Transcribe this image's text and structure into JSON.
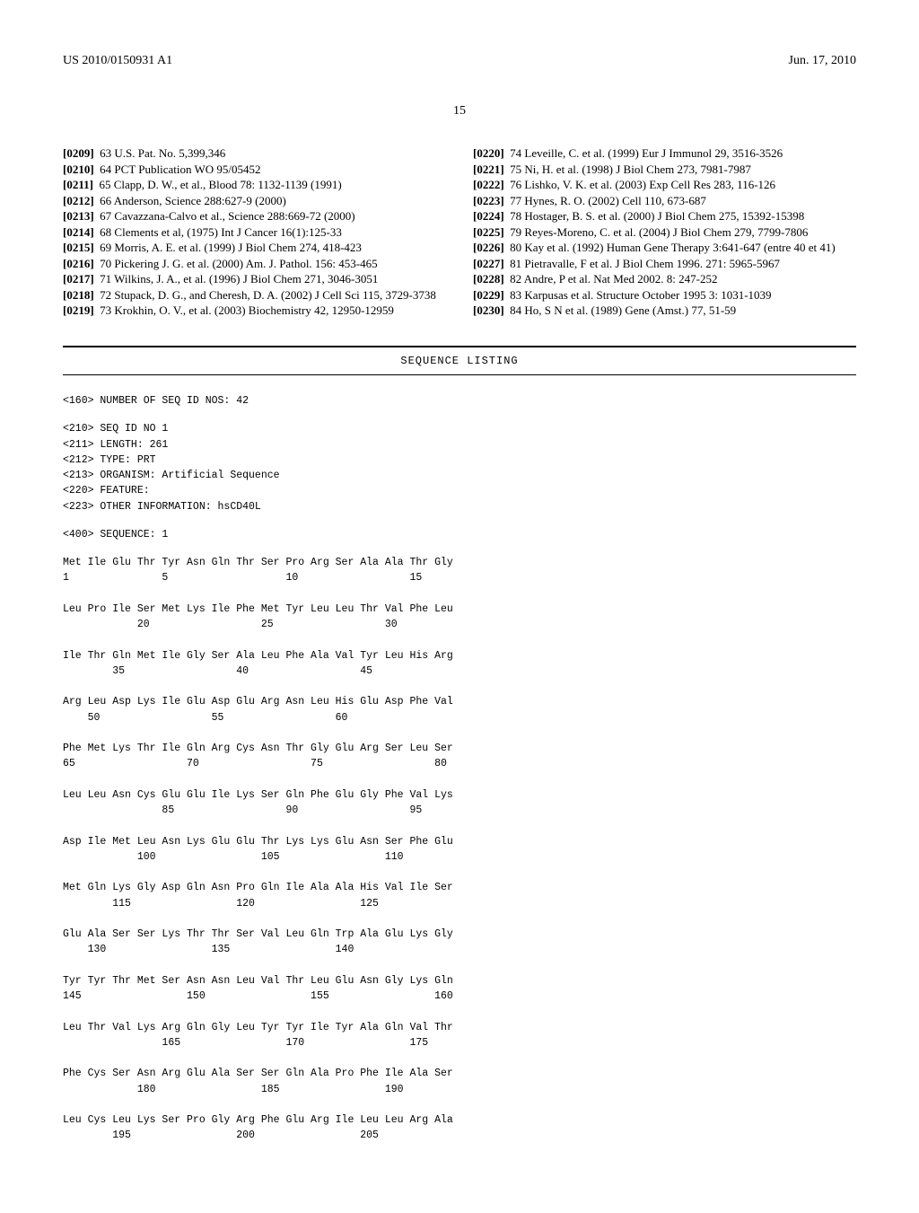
{
  "header": {
    "pub_num": "US 2010/0150931 A1",
    "date": "Jun. 17, 2010"
  },
  "page_number": "15",
  "left_refs": [
    {
      "num": "[0209]",
      "text": "63 U.S. Pat. No. 5,399,346"
    },
    {
      "num": "[0210]",
      "text": "64 PCT Publication WO 95/05452"
    },
    {
      "num": "[0211]",
      "text": "65 Clapp, D. W., et al., Blood 78: 1132-1139 (1991)"
    },
    {
      "num": "[0212]",
      "text": "66 Anderson, Science 288:627-9 (2000)"
    },
    {
      "num": "[0213]",
      "text": "67 Cavazzana-Calvo et al., Science 288:669-72 (2000)"
    },
    {
      "num": "[0214]",
      "text": "68 Clements et al, (1975) Int J Cancer 16(1):125-33"
    },
    {
      "num": "[0215]",
      "text": "69 Morris, A. E. et al. (1999) J Biol Chem 274, 418-423"
    },
    {
      "num": "[0216]",
      "text": "70 Pickering J. G. et al. (2000) Am. J. Pathol. 156: 453-465"
    },
    {
      "num": "[0217]",
      "text": "71 Wilkins, J. A., et al. (1996) J Biol Chem 271, 3046-3051"
    },
    {
      "num": "[0218]",
      "text": "72 Stupack, D. G., and Cheresh, D. A. (2002) J Cell Sci 115, 3729-3738"
    },
    {
      "num": "[0219]",
      "text": "73 Krokhin, O. V., et al. (2003) Biochemistry 42, 12950-12959"
    }
  ],
  "right_refs": [
    {
      "num": "[0220]",
      "text": "74 Leveille, C. et al. (1999) Eur J Immunol 29, 3516-3526"
    },
    {
      "num": "[0221]",
      "text": "75 Ni, H. et al. (1998) J Biol Chem 273, 7981-7987"
    },
    {
      "num": "[0222]",
      "text": "76 Lishko, V. K. et al. (2003) Exp Cell Res 283, 116-126"
    },
    {
      "num": "[0223]",
      "text": "77 Hynes, R. O. (2002) Cell 110, 673-687"
    },
    {
      "num": "[0224]",
      "text": "78 Hostager, B. S. et al. (2000) J Biol Chem 275, 15392-15398"
    },
    {
      "num": "[0225]",
      "text": "79 Reyes-Moreno, C. et al. (2004) J Biol Chem 279, 7799-7806"
    },
    {
      "num": "[0226]",
      "text": "80 Kay et al. (1992) Human Gene Therapy 3:641-647 (entre 40 et 41)"
    },
    {
      "num": "[0227]",
      "text": "81 Pietravalle, F et al. J Biol Chem 1996. 271: 5965-5967"
    },
    {
      "num": "[0228]",
      "text": "82 Andre, P et al. Nat Med 2002. 8: 247-252"
    },
    {
      "num": "[0229]",
      "text": "83 Karpusas et al. Structure October 1995 3: 1031-1039"
    },
    {
      "num": "[0230]",
      "text": "84 Ho, S N et al. (1989) Gene (Amst.) 77, 51-59"
    }
  ],
  "seq": {
    "title": "SEQUENCE LISTING",
    "meta_160": "<160> NUMBER OF SEQ ID NOS: 42",
    "meta_210": "<210> SEQ ID NO 1",
    "meta_211": "<211> LENGTH: 261",
    "meta_212": "<212> TYPE: PRT",
    "meta_213": "<213> ORGANISM: Artificial Sequence",
    "meta_220": "<220> FEATURE:",
    "meta_223": "<223> OTHER INFORMATION: hsCD40L",
    "meta_400": "<400> SEQUENCE: 1",
    "rows": [
      {
        "aa": "Met Ile Glu Thr Tyr Asn Gln Thr Ser Pro Arg Ser Ala Ala Thr Gly",
        "nums": "1               5                   10                  15"
      },
      {
        "aa": "Leu Pro Ile Ser Met Lys Ile Phe Met Tyr Leu Leu Thr Val Phe Leu",
        "nums": "            20                  25                  30"
      },
      {
        "aa": "Ile Thr Gln Met Ile Gly Ser Ala Leu Phe Ala Val Tyr Leu His Arg",
        "nums": "        35                  40                  45"
      },
      {
        "aa": "Arg Leu Asp Lys Ile Glu Asp Glu Arg Asn Leu His Glu Asp Phe Val",
        "nums": "    50                  55                  60"
      },
      {
        "aa": "Phe Met Lys Thr Ile Gln Arg Cys Asn Thr Gly Glu Arg Ser Leu Ser",
        "nums": "65                  70                  75                  80"
      },
      {
        "aa": "Leu Leu Asn Cys Glu Glu Ile Lys Ser Gln Phe Glu Gly Phe Val Lys",
        "nums": "                85                  90                  95"
      },
      {
        "aa": "Asp Ile Met Leu Asn Lys Glu Glu Thr Lys Lys Glu Asn Ser Phe Glu",
        "nums": "            100                 105                 110"
      },
      {
        "aa": "Met Gln Lys Gly Asp Gln Asn Pro Gln Ile Ala Ala His Val Ile Ser",
        "nums": "        115                 120                 125"
      },
      {
        "aa": "Glu Ala Ser Ser Lys Thr Thr Ser Val Leu Gln Trp Ala Glu Lys Gly",
        "nums": "    130                 135                 140"
      },
      {
        "aa": "Tyr Tyr Thr Met Ser Asn Asn Leu Val Thr Leu Glu Asn Gly Lys Gln",
        "nums": "145                 150                 155                 160"
      },
      {
        "aa": "Leu Thr Val Lys Arg Gln Gly Leu Tyr Tyr Ile Tyr Ala Gln Val Thr",
        "nums": "                165                 170                 175"
      },
      {
        "aa": "Phe Cys Ser Asn Arg Glu Ala Ser Ser Gln Ala Pro Phe Ile Ala Ser",
        "nums": "            180                 185                 190"
      },
      {
        "aa": "Leu Cys Leu Lys Ser Pro Gly Arg Phe Glu Arg Ile Leu Leu Arg Ala",
        "nums": "        195                 200                 205"
      }
    ]
  }
}
